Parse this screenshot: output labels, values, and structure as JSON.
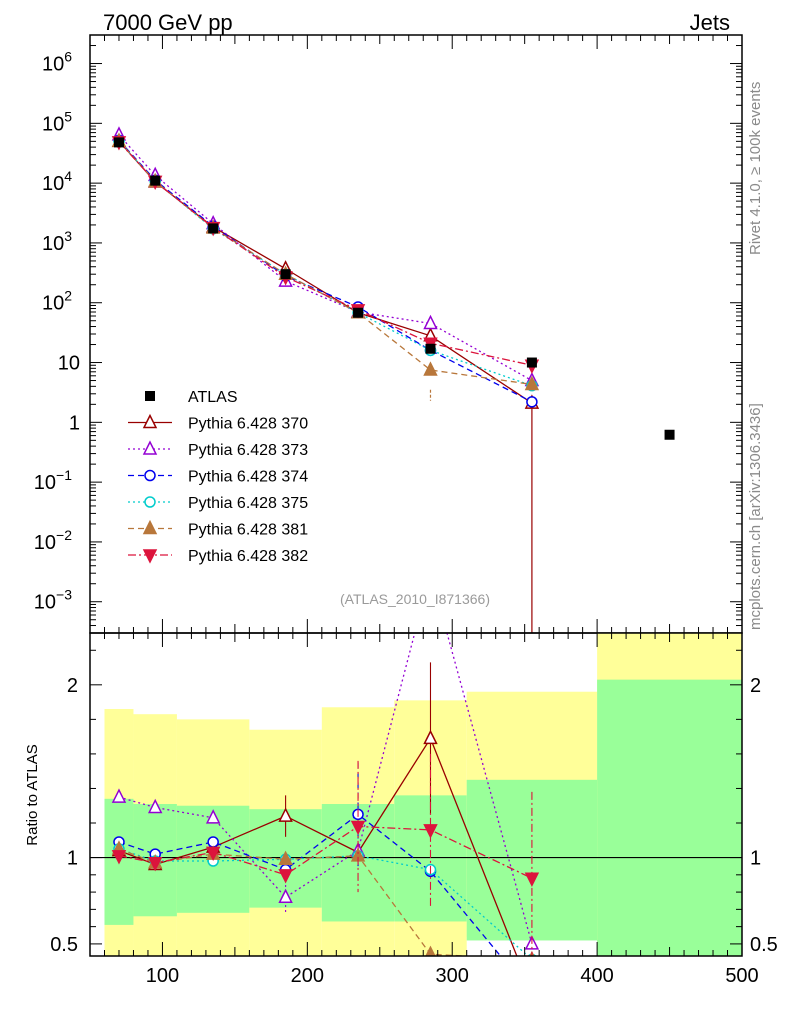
{
  "header": {
    "left": "7000 GeV pp",
    "right": "Jets"
  },
  "side_labels": {
    "top": "Rivet 4.1.0, ≥ 100k events",
    "bottom": "mcplots.cern.ch [arXiv:1306.3436]"
  },
  "analysis_label": "(ATLAS_2010_I871366)",
  "colors": {
    "data": "#000000",
    "band_inner": "#99ff99",
    "band_outer": "#ffff99"
  },
  "chart_data": [
    {
      "type": "line",
      "panel": "main",
      "yscale": "log",
      "xlim": [
        50,
        500
      ],
      "ylim": [
        0.0003,
        3000000
      ],
      "y_ticks": [
        {
          "value": 0.001,
          "label": "10",
          "exp": "−3"
        },
        {
          "value": 0.01,
          "label": "10",
          "exp": "−2"
        },
        {
          "value": 0.1,
          "label": "10",
          "exp": "−1"
        },
        {
          "value": 1,
          "label": "1",
          "exp": ""
        },
        {
          "value": 10,
          "label": "10",
          "exp": ""
        },
        {
          "value": 100,
          "label": "10",
          "exp": "2"
        },
        {
          "value": 1000,
          "label": "10",
          "exp": "3"
        },
        {
          "value": 10000,
          "label": "10",
          "exp": "4"
        },
        {
          "value": 100000,
          "label": "10",
          "exp": "5"
        },
        {
          "value": 1000000,
          "label": "10",
          "exp": "6"
        }
      ],
      "data_series": {
        "name": "ATLAS",
        "x": [
          70,
          95,
          135,
          185,
          235,
          285,
          355,
          450
        ],
        "y": [
          48000,
          11000,
          1750,
          300,
          68,
          17,
          10,
          0.62
        ]
      },
      "series": [
        {
          "name": "Pythia 6.428 370",
          "color": "#990000",
          "marker": "triangle-up-open",
          "dash": "",
          "x": [
            70,
            95,
            135,
            185,
            235,
            285,
            355
          ],
          "y": [
            50000,
            10500,
            1850,
            370,
            68,
            28,
            2.1
          ],
          "err": [
            [],
            [],
            [],
            [],
            [],
            [],
            [
              2.1
            ]
          ]
        },
        {
          "name": "Pythia 6.428 373",
          "color": "#9400d3",
          "marker": "triangle-up-open",
          "dash": "2,3",
          "x": [
            70,
            95,
            135,
            185,
            235,
            285,
            355
          ],
          "y": [
            64000,
            13500,
            2100,
            230,
            70,
            45,
            5
          ],
          "err": []
        },
        {
          "name": "Pythia 6.428 374",
          "color": "#0000ee",
          "marker": "circle-open",
          "dash": "6,4",
          "x": [
            70,
            95,
            135,
            185,
            235,
            285,
            355
          ],
          "y": [
            52000,
            11200,
            1900,
            280,
            85,
            16,
            2.2
          ],
          "err": []
        },
        {
          "name": "Pythia 6.428 375",
          "color": "#00cccc",
          "marker": "circle-open",
          "dash": "2,3",
          "x": [
            70,
            95,
            135,
            185,
            235,
            285,
            355
          ],
          "y": [
            50000,
            10800,
            1720,
            300,
            68,
            16,
            4.1
          ],
          "err": []
        },
        {
          "name": "Pythia 6.428 381",
          "color": "#b8773b",
          "marker": "triangle-up-filled",
          "dash": "6,4",
          "x": [
            70,
            95,
            135,
            185,
            235,
            285,
            355
          ],
          "y": [
            50500,
            10700,
            1780,
            300,
            68,
            7.5,
            4.3
          ],
          "err": []
        },
        {
          "name": "Pythia 6.428 382",
          "color": "#dc143c",
          "marker": "triangle-down-filled",
          "dash": "8,3,2,3",
          "x": [
            70,
            95,
            135,
            185,
            235,
            285,
            355
          ],
          "y": [
            49000,
            10700,
            1800,
            270,
            76,
            21,
            9
          ],
          "err": []
        }
      ],
      "legend": {
        "position": "center-left"
      }
    },
    {
      "type": "line",
      "panel": "ratio",
      "ylabel": "Ratio to ATLAS",
      "xlim": [
        50,
        500
      ],
      "ylim": [
        0.43,
        2.3
      ],
      "y_ticks": [
        {
          "value": 0.5,
          "label": "0.5"
        },
        {
          "value": 1,
          "label": "1"
        },
        {
          "value": 2,
          "label": "2"
        }
      ],
      "x_ticks": [
        {
          "value": 100,
          "label": "100"
        },
        {
          "value": 200,
          "label": "200"
        },
        {
          "value": 300,
          "label": "300"
        },
        {
          "value": 400,
          "label": "400"
        },
        {
          "value": 500,
          "label": "500"
        }
      ],
      "bins": [
        60,
        80,
        110,
        160,
        210,
        260,
        310,
        400,
        500
      ],
      "band_inner": [
        [
          0.61,
          1.34
        ],
        [
          0.66,
          1.31
        ],
        [
          0.68,
          1.3
        ],
        [
          0.71,
          1.28
        ],
        [
          0.63,
          1.31
        ],
        [
          0.63,
          1.36
        ],
        [
          0.52,
          1.45
        ],
        [
          0.4,
          2.03
        ]
      ],
      "band_outer": [
        [
          0.4,
          1.86
        ],
        [
          0.4,
          1.83
        ],
        [
          0.4,
          1.8
        ],
        [
          0.4,
          1.74
        ],
        [
          0.4,
          1.87
        ],
        [
          0.4,
          1.91
        ],
        [
          0.54,
          1.96
        ],
        [
          0.4,
          2.5
        ]
      ],
      "series": [
        {
          "name": "Pythia 6.428 370",
          "color": "#990000",
          "marker": "triangle-up-open",
          "dash": "",
          "x": [
            70,
            95,
            135,
            185,
            235,
            285,
            355
          ],
          "y": [
            1.04,
            0.96,
            1.06,
            1.24,
            1.03,
            1.69,
            0.21
          ],
          "err": [
            0,
            0,
            0,
            0.12,
            0,
            0.44,
            0
          ]
        },
        {
          "name": "Pythia 6.428 373",
          "color": "#9400d3",
          "marker": "triangle-up-open",
          "dash": "2,3",
          "x": [
            70,
            95,
            135,
            185,
            235,
            285,
            355
          ],
          "y": [
            1.35,
            1.29,
            1.23,
            0.77,
            1.04,
            2.65,
            0.5
          ],
          "err": [
            0,
            0,
            0,
            0.1,
            0,
            0,
            0
          ]
        },
        {
          "name": "Pythia 6.428 374",
          "color": "#0000ee",
          "marker": "circle-open",
          "dash": "6,4",
          "x": [
            70,
            95,
            135,
            185,
            235,
            285,
            355
          ],
          "y": [
            1.09,
            1.02,
            1.09,
            0.93,
            1.25,
            0.92,
            0.21
          ],
          "err": [
            0,
            0,
            0,
            0,
            0.3,
            0,
            0
          ]
        },
        {
          "name": "Pythia 6.428 375",
          "color": "#00cccc",
          "marker": "circle-open",
          "dash": "2,3",
          "x": [
            70,
            95,
            135,
            185,
            235,
            285,
            355
          ],
          "y": [
            1.05,
            0.98,
            0.98,
            0.99,
            1.01,
            0.93,
            0.41
          ],
          "err": [
            0,
            0,
            0,
            0,
            0,
            0,
            0
          ]
        },
        {
          "name": "Pythia 6.428 381",
          "color": "#b8773b",
          "marker": "triangle-up-filled",
          "dash": "6,4",
          "x": [
            70,
            95,
            135,
            185,
            235,
            285,
            355
          ],
          "y": [
            1.05,
            0.97,
            1.02,
            0.99,
            1.01,
            0.44,
            0.41
          ],
          "err": [
            0,
            0,
            0,
            0,
            0,
            0,
            0
          ]
        },
        {
          "name": "Pythia 6.428 382",
          "color": "#dc143c",
          "marker": "triangle-down-filled",
          "dash": "8,3,2,3",
          "x": [
            70,
            95,
            135,
            185,
            235,
            285,
            355
          ],
          "y": [
            1.01,
            0.97,
            1.03,
            0.9,
            1.18,
            1.16,
            0.88
          ],
          "err": [
            0,
            0,
            0,
            0,
            0.38,
            0.44,
            0.5
          ]
        }
      ]
    }
  ]
}
